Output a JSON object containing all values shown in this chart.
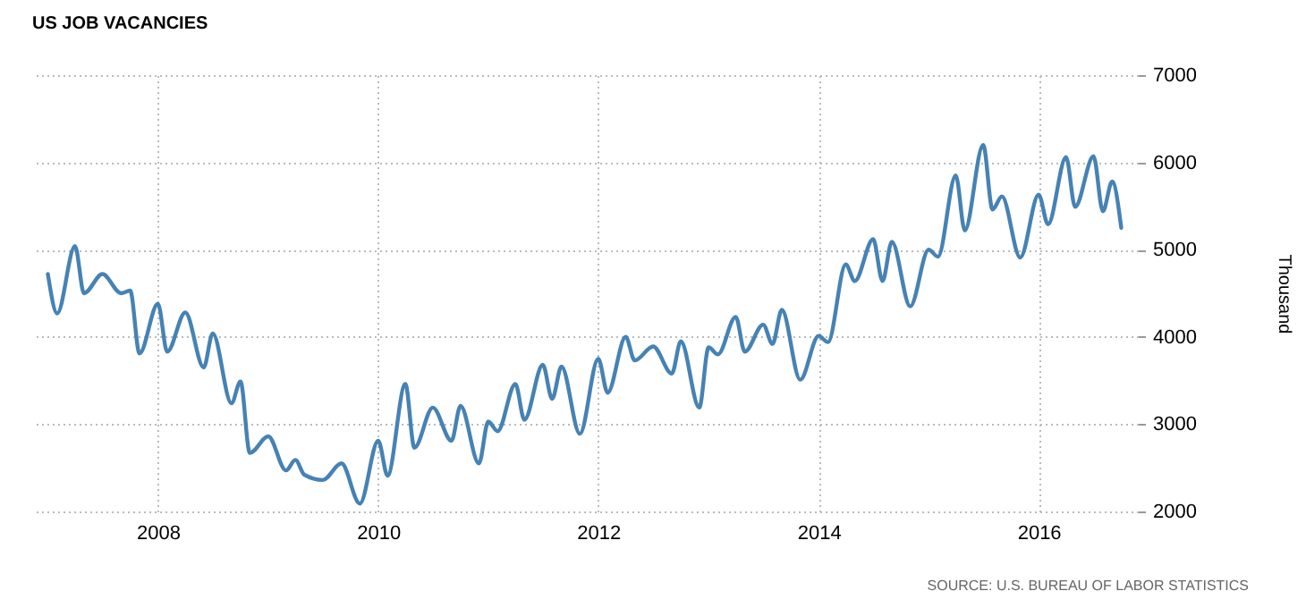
{
  "chart_data": {
    "type": "line",
    "title": "US JOB VACANCIES",
    "ylabel": "Thousand",
    "annotations": [
      "SOURCE: U.S. BUREAU OF LABOR STATISTICS"
    ],
    "x": [
      "2007-01",
      "2007-02",
      "2007-04",
      "2007-05",
      "2007-07",
      "2007-09",
      "2007-10",
      "2007-11",
      "2008-01",
      "2008-02",
      "2008-04",
      "2008-06",
      "2008-07",
      "2008-09",
      "2008-10",
      "2008-11",
      "2009-01",
      "2009-03",
      "2009-04",
      "2009-05",
      "2009-07",
      "2009-09",
      "2009-11",
      "2010-01",
      "2010-02",
      "2010-04",
      "2010-05",
      "2010-07",
      "2010-09",
      "2010-10",
      "2010-12",
      "2011-01",
      "2011-02",
      "2011-04",
      "2011-05",
      "2011-07",
      "2011-08",
      "2011-09",
      "2011-11",
      "2012-01",
      "2012-02",
      "2012-04",
      "2012-05",
      "2012-07",
      "2012-09",
      "2012-10",
      "2012-12",
      "2013-01",
      "2013-02",
      "2013-04",
      "2013-05",
      "2013-07",
      "2013-08",
      "2013-09",
      "2013-11",
      "2014-01",
      "2014-02",
      "2014-04",
      "2014-05",
      "2014-07",
      "2014-08",
      "2014-09",
      "2014-11",
      "2015-01",
      "2015-02",
      "2015-04",
      "2015-05",
      "2015-07",
      "2015-08",
      "2015-09",
      "2015-11",
      "2016-01",
      "2016-02",
      "2016-04",
      "2016-05",
      "2016-07",
      "2016-08",
      "2016-09",
      "2016-10"
    ],
    "series": [
      {
        "color": "#4682b4",
        "values": [
          4720,
          4270,
          5040,
          4500,
          4720,
          4500,
          4530,
          3810,
          4380,
          3830,
          4280,
          3650,
          4040,
          3240,
          3490,
          2670,
          2860,
          2470,
          2590,
          2420,
          2360,
          2550,
          2090,
          2810,
          2410,
          3460,
          2730,
          3190,
          2810,
          3210,
          2550,
          3030,
          2920,
          3460,
          3050,
          3680,
          3290,
          3660,
          2890,
          3750,
          3360,
          4000,
          3730,
          3890,
          3580,
          3950,
          3190,
          3880,
          3800,
          4230,
          3830,
          4140,
          3920,
          4310,
          3510,
          4010,
          3940,
          4830,
          4640,
          5120,
          4640,
          5090,
          4350,
          5000,
          4920,
          5850,
          5220,
          6200,
          5460,
          5610,
          4910,
          5630,
          5290,
          6060,
          5490,
          6070,
          5440,
          5780,
          5250
        ]
      }
    ],
    "xlim": [
      "2006-11-10",
      "2016-11-25"
    ],
    "xticks": [
      "2008",
      "2010",
      "2012",
      "2014",
      "2016"
    ],
    "ylim": [
      2000,
      7000
    ],
    "yticks": [
      2000,
      3000,
      4000,
      5000,
      6000,
      7000
    ],
    "grid": true
  }
}
